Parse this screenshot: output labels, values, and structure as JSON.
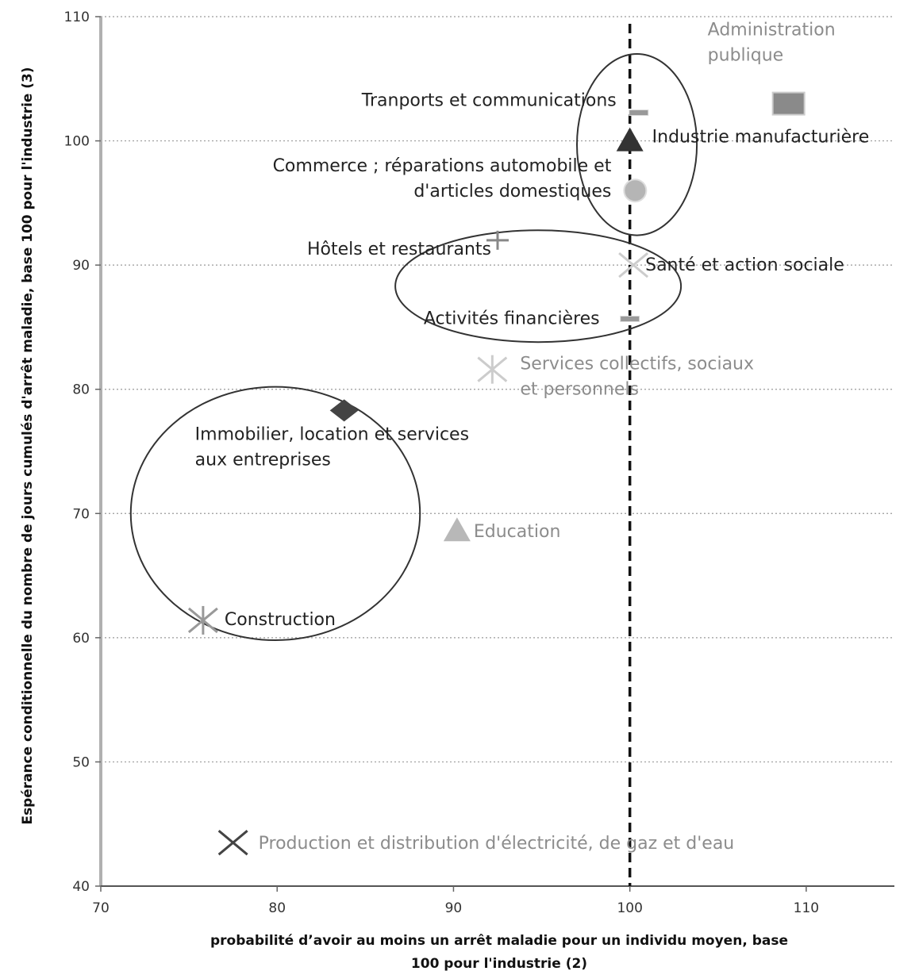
{
  "chart_data": {
    "type": "scatter",
    "xlabel_line1": "probabilité d’avoir au moins un arrêt maladie pour un individu moyen, base",
    "xlabel_line2": "100 pour l'industrie (2)",
    "ylabel": "Espérance conditionnelle du nombre de jours cumulés d'arrêt maladie, base 100 pour l'industrie (3)",
    "xlim": [
      70,
      115
    ],
    "ylim": [
      40,
      110
    ],
    "xticks": [
      70,
      80,
      90,
      100,
      110
    ],
    "yticks": [
      40,
      50,
      60,
      70,
      80,
      90,
      100,
      110
    ],
    "grid": "horizontal-dotted",
    "reference_line_x": 100,
    "points": [
      {
        "label": "Administration publique",
        "lines": [
          "Administration",
          "publique"
        ],
        "x": 109,
        "y": 103,
        "marker": "square",
        "color": "#8a8a8a",
        "label_color": "#8c8c8c"
      },
      {
        "label": "Tranports et communications",
        "lines": [
          "Tranports et communications"
        ],
        "x": 100.5,
        "y": 102.3,
        "marker": "dash",
        "color": "#999999",
        "label_color": "#222222"
      },
      {
        "label": "Industrie manufacturière",
        "lines": [
          "Industrie manufacturière"
        ],
        "x": 100,
        "y": 100,
        "marker": "triangle",
        "color": "#333333",
        "label_color": "#222222"
      },
      {
        "label": "Commerce ; réparations automobile et d'articles domestiques",
        "lines": [
          "Commerce ; réparations automobile et",
          "d'articles domestiques"
        ],
        "x": 100.3,
        "y": 96,
        "marker": "circle",
        "color": "#b5b5b5",
        "label_color": "#222222"
      },
      {
        "label": "Hôtels et restaurants",
        "lines": [
          "Hôtels et restaurants"
        ],
        "x": 92.5,
        "y": 92,
        "marker": "plus",
        "color": "#888888",
        "label_color": "#222222"
      },
      {
        "label": "Santé et action sociale",
        "lines": [
          "Santé et action sociale"
        ],
        "x": 100.2,
        "y": 90,
        "marker": "x",
        "color": "#cccccc",
        "label_color": "#222222"
      },
      {
        "label": "Activités financières",
        "lines": [
          "Activités financières"
        ],
        "x": 100,
        "y": 85.7,
        "marker": "dash",
        "color": "#999999",
        "label_color": "#222222"
      },
      {
        "label": "Services collectifs, sociaux et personnels",
        "lines": [
          "Services collectifs, sociaux",
          "et personnels"
        ],
        "x": 92.2,
        "y": 81.6,
        "marker": "asterisk",
        "color": "#cccccc",
        "label_color": "#8c8c8c"
      },
      {
        "label": "Immobilier, location et services aux entreprises",
        "lines": [
          "Immobilier, location et services",
          "aux entreprises"
        ],
        "x": 83.8,
        "y": 78.3,
        "marker": "diamond",
        "color": "#444444",
        "label_color": "#222222"
      },
      {
        "label": "Education",
        "lines": [
          "Education"
        ],
        "x": 90.2,
        "y": 68.6,
        "marker": "triangle",
        "color": "#b8b8b8",
        "label_color": "#8c8c8c"
      },
      {
        "label": "Construction",
        "lines": [
          "Construction"
        ],
        "x": 75.8,
        "y": 61.4,
        "marker": "asterisk",
        "color": "#999999",
        "label_color": "#222222"
      },
      {
        "label": "Production et distribution d'électricité, de gaz et d'eau",
        "lines": [
          "Production et distribution d'électricité, de gaz et d'eau"
        ],
        "x": 77.5,
        "y": 43.5,
        "marker": "x",
        "color": "#444444",
        "label_color": "#8c8c8c"
      }
    ],
    "ellipses": [
      {
        "cx": 100.4,
        "cy": 99.7,
        "rx": 3.4,
        "ry": 7.3
      },
      {
        "cx": 94.8,
        "cy": 88.3,
        "rx": 8.1,
        "ry": 4.5
      },
      {
        "cx": 79.9,
        "cy": 70.0,
        "rx": 8.2,
        "ry": 10.2
      }
    ]
  }
}
